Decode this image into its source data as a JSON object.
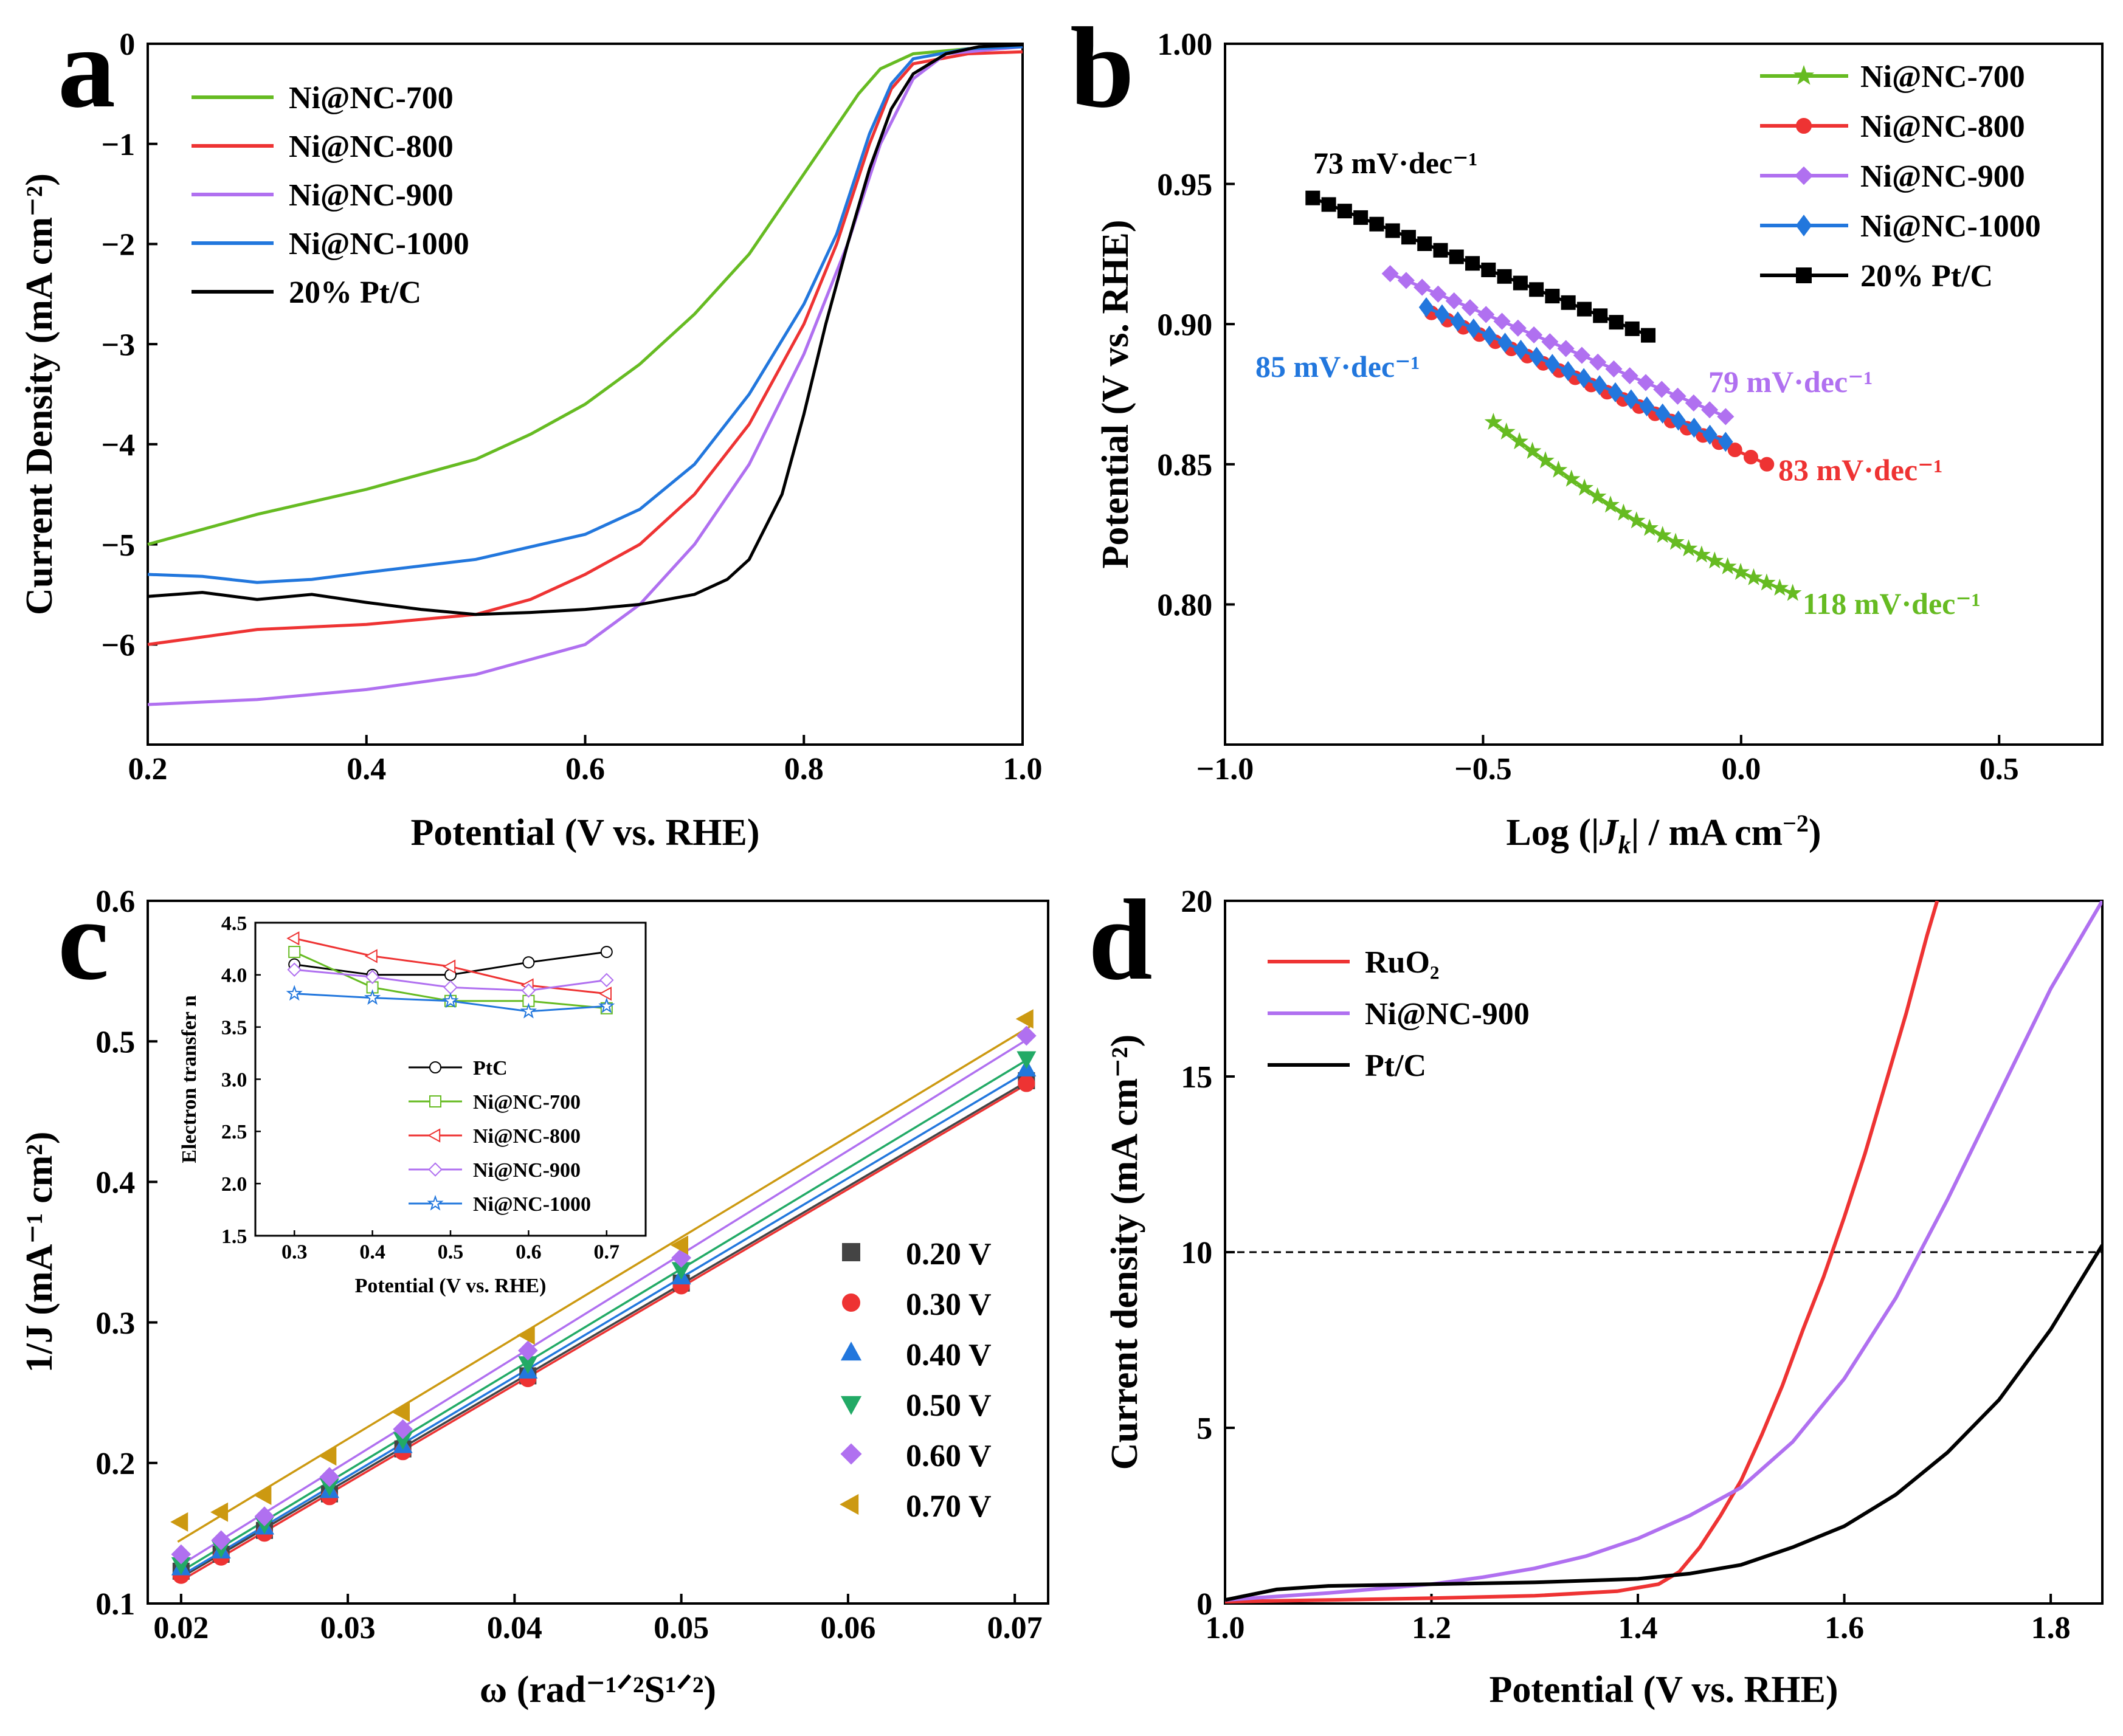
{
  "panels": {
    "a": {
      "label": "a"
    },
    "b": {
      "label": "b"
    },
    "c": {
      "label": "c"
    },
    "d": {
      "label": "d"
    }
  },
  "colors": {
    "green": "#66bb22",
    "red": "#ee3333",
    "purple": "#b070f0",
    "blue": "#2277dd",
    "black": "#000000",
    "gold": "#cc9911"
  },
  "chart_data": [
    {
      "id": "a",
      "type": "line",
      "xlabel": "Potential (V vs. RHE)",
      "ylabel": "Current Density (mA cm⁻²)",
      "xlim": [
        0.2,
        1.0
      ],
      "ylim": [
        -7.0,
        0
      ],
      "xticks": [
        "0.2",
        "0.4",
        "0.6",
        "0.8",
        "1.0"
      ],
      "yticks": [
        "0",
        "−1",
        "−2",
        "−3",
        "−4",
        "−5",
        "−6"
      ],
      "legend": "top-left",
      "series": [
        {
          "name": "Ni@NC-700",
          "color": "green",
          "points": [
            [
              0.2,
              -5.0
            ],
            [
              0.3,
              -4.7
            ],
            [
              0.4,
              -4.45
            ],
            [
              0.5,
              -4.15
            ],
            [
              0.55,
              -3.9
            ],
            [
              0.6,
              -3.6
            ],
            [
              0.65,
              -3.2
            ],
            [
              0.7,
              -2.7
            ],
            [
              0.75,
              -2.1
            ],
            [
              0.8,
              -1.3
            ],
            [
              0.85,
              -0.5
            ],
            [
              0.87,
              -0.25
            ],
            [
              0.9,
              -0.1
            ],
            [
              0.95,
              -0.05
            ],
            [
              1.0,
              -0.03
            ]
          ]
        },
        {
          "name": "Ni@NC-800",
          "color": "red",
          "points": [
            [
              0.2,
              -6.0
            ],
            [
              0.3,
              -5.85
            ],
            [
              0.4,
              -5.8
            ],
            [
              0.5,
              -5.7
            ],
            [
              0.55,
              -5.55
            ],
            [
              0.6,
              -5.3
            ],
            [
              0.65,
              -5.0
            ],
            [
              0.7,
              -4.5
            ],
            [
              0.75,
              -3.8
            ],
            [
              0.8,
              -2.8
            ],
            [
              0.83,
              -2.0
            ],
            [
              0.86,
              -1.0
            ],
            [
              0.88,
              -0.45
            ],
            [
              0.9,
              -0.2
            ],
            [
              0.95,
              -0.1
            ],
            [
              1.0,
              -0.08
            ]
          ]
        },
        {
          "name": "Ni@NC-900",
          "color": "purple",
          "points": [
            [
              0.2,
              -6.6
            ],
            [
              0.3,
              -6.55
            ],
            [
              0.4,
              -6.45
            ],
            [
              0.5,
              -6.3
            ],
            [
              0.6,
              -6.0
            ],
            [
              0.65,
              -5.6
            ],
            [
              0.7,
              -5.0
            ],
            [
              0.75,
              -4.2
            ],
            [
              0.8,
              -3.1
            ],
            [
              0.84,
              -2.0
            ],
            [
              0.87,
              -1.0
            ],
            [
              0.9,
              -0.35
            ],
            [
              0.93,
              -0.1
            ],
            [
              1.0,
              -0.03
            ]
          ]
        },
        {
          "name": "Ni@NC-1000",
          "color": "blue",
          "points": [
            [
              0.2,
              -5.3
            ],
            [
              0.25,
              -5.32
            ],
            [
              0.3,
              -5.38
            ],
            [
              0.35,
              -5.35
            ],
            [
              0.4,
              -5.28
            ],
            [
              0.5,
              -5.15
            ],
            [
              0.6,
              -4.9
            ],
            [
              0.65,
              -4.65
            ],
            [
              0.7,
              -4.2
            ],
            [
              0.75,
              -3.5
            ],
            [
              0.8,
              -2.6
            ],
            [
              0.83,
              -1.9
            ],
            [
              0.86,
              -0.9
            ],
            [
              0.88,
              -0.4
            ],
            [
              0.9,
              -0.15
            ],
            [
              0.95,
              -0.05
            ],
            [
              1.0,
              -0.03
            ]
          ]
        },
        {
          "name": "20% Pt/C",
          "color": "black",
          "points": [
            [
              0.2,
              -5.52
            ],
            [
              0.25,
              -5.48
            ],
            [
              0.3,
              -5.55
            ],
            [
              0.35,
              -5.5
            ],
            [
              0.4,
              -5.58
            ],
            [
              0.45,
              -5.65
            ],
            [
              0.5,
              -5.7
            ],
            [
              0.55,
              -5.68
            ],
            [
              0.6,
              -5.65
            ],
            [
              0.65,
              -5.6
            ],
            [
              0.7,
              -5.5
            ],
            [
              0.73,
              -5.35
            ],
            [
              0.75,
              -5.15
            ],
            [
              0.78,
              -4.5
            ],
            [
              0.8,
              -3.7
            ],
            [
              0.82,
              -2.8
            ],
            [
              0.84,
              -2.0
            ],
            [
              0.86,
              -1.25
            ],
            [
              0.88,
              -0.65
            ],
            [
              0.9,
              -0.3
            ],
            [
              0.93,
              -0.1
            ],
            [
              0.96,
              -0.03
            ],
            [
              1.0,
              -0.01
            ]
          ]
        }
      ]
    },
    {
      "id": "b",
      "type": "line",
      "xlabel_parts": [
        "Log (|",
        "J",
        "k",
        "| / mA cm",
        "−2",
        ")"
      ],
      "ylabel": "Potential (V vs. RHE)",
      "xlim": [
        -1.0,
        0.7
      ],
      "ylim": [
        0.75,
        1.0
      ],
      "xticks": [
        "−1.0",
        "−0.5",
        "0.0",
        "0.5"
      ],
      "yticks": [
        "0.80",
        "0.85",
        "0.90",
        "0.95",
        "1.00"
      ],
      "legend": "top-right",
      "series": [
        {
          "name": "Ni@NC-700",
          "color": "green",
          "marker": "star",
          "slope": "118 mV·dec⁻¹",
          "start": [
            -0.48,
            0.865
          ],
          "end": [
            0.1,
            0.804
          ],
          "n": 24
        },
        {
          "name": "Ni@NC-800",
          "color": "red",
          "marker": "circle",
          "slope": "83 mV·dec⁻¹",
          "start": [
            -0.6,
            0.904
          ],
          "end": [
            0.05,
            0.85
          ],
          "n": 22
        },
        {
          "name": "Ni@NC-900",
          "color": "purple",
          "marker": "diamond",
          "slope": "79 mV·dec⁻¹",
          "start": [
            -0.68,
            0.918
          ],
          "end": [
            -0.03,
            0.867
          ],
          "n": 22
        },
        {
          "name": "Ni@NC-1000",
          "color": "blue",
          "marker": "diamondbig",
          "slope": "85 mV·dec⁻¹",
          "start": [
            -0.61,
            0.906
          ],
          "end": [
            -0.03,
            0.858
          ],
          "n": 20
        },
        {
          "name": "20% Pt/C",
          "color": "black",
          "marker": "square",
          "slope": "73 mV·dec⁻¹",
          "start": [
            -0.83,
            0.945
          ],
          "end": [
            -0.18,
            0.896
          ],
          "n": 22
        }
      ]
    },
    {
      "id": "c",
      "type": "scatter",
      "xlabel": "ω (rad⁻¹ᐟ²S¹ᐟ²)",
      "ylabel": "1/J (mA⁻¹ cm²)",
      "xlim": [
        0.018,
        0.072
      ],
      "ylim": [
        0.1,
        0.6
      ],
      "xticks": [
        "0.02",
        "0.03",
        "0.04",
        "0.05",
        "0.06",
        "0.07"
      ],
      "yticks": [
        "0.1",
        "0.2",
        "0.3",
        "0.4",
        "0.5",
        "0.6"
      ],
      "x": [
        0.02,
        0.0224,
        0.025,
        0.0289,
        0.0333,
        0.0408,
        0.05,
        0.0707
      ],
      "legend": "bottom-right",
      "series": [
        {
          "name": "0.20 V",
          "color": "#444444",
          "marker": "square",
          "values": [
            0.123,
            0.135,
            0.152,
            0.178,
            0.21,
            0.262,
            0.328,
            0.472
          ]
        },
        {
          "name": "0.30 V",
          "color": "#ee3333",
          "marker": "circle",
          "values": [
            0.12,
            0.133,
            0.15,
            0.176,
            0.208,
            0.26,
            0.326,
            0.47
          ]
        },
        {
          "name": "0.40 V",
          "color": "#2277dd",
          "marker": "triangle-up",
          "values": [
            0.125,
            0.137,
            0.154,
            0.18,
            0.212,
            0.265,
            0.332,
            0.48
          ]
        },
        {
          "name": "0.50 V",
          "color": "#22aa66",
          "marker": "triangle-down",
          "values": [
            0.128,
            0.14,
            0.157,
            0.184,
            0.217,
            0.271,
            0.338,
            0.488
          ]
        },
        {
          "name": "0.60 V",
          "color": "#b070f0",
          "marker": "diamond",
          "values": [
            0.135,
            0.145,
            0.162,
            0.19,
            0.224,
            0.28,
            0.346,
            0.504
          ]
        },
        {
          "name": "0.70 V",
          "color": "#cc9911",
          "marker": "triangle-left",
          "values": [
            0.158,
            0.165,
            0.177,
            0.205,
            0.236,
            0.291,
            0.355,
            0.516
          ]
        }
      ],
      "inset": {
        "xlabel": "Potential (V vs. RHE)",
        "ylabel": "Electron transfer n",
        "xlim": [
          0.25,
          0.75
        ],
        "ylim": [
          1.5,
          4.5
        ],
        "xticks": [
          "0.3",
          "0.4",
          "0.5",
          "0.6",
          "0.7"
        ],
        "yticks": [
          "1.5",
          "2.0",
          "2.5",
          "3.0",
          "3.5",
          "4.0",
          "4.5"
        ],
        "x": [
          0.3,
          0.4,
          0.5,
          0.6,
          0.7
        ],
        "series": [
          {
            "name": "PtC",
            "color": "#000000",
            "marker": "circle",
            "values": [
              4.1,
              4.0,
              4.0,
              4.12,
              4.22
            ]
          },
          {
            "name": "Ni@NC-700",
            "color": "#66bb22",
            "marker": "square",
            "values": [
              4.22,
              3.88,
              3.75,
              3.75,
              3.68
            ]
          },
          {
            "name": "Ni@NC-800",
            "color": "#ee3333",
            "marker": "triangle-left",
            "values": [
              4.35,
              4.18,
              4.08,
              3.9,
              3.82
            ]
          },
          {
            "name": "Ni@NC-900",
            "color": "#b070f0",
            "marker": "diamond",
            "values": [
              4.05,
              3.98,
              3.88,
              3.85,
              3.95
            ]
          },
          {
            "name": "Ni@NC-1000",
            "color": "#2277dd",
            "marker": "star",
            "values": [
              3.82,
              3.78,
              3.75,
              3.65,
              3.7
            ]
          }
        ]
      }
    },
    {
      "id": "d",
      "type": "line",
      "xlabel": "Potential (V vs. RHE)",
      "ylabel": "Current density (mA cm⁻²)",
      "xlim": [
        1.0,
        1.85
      ],
      "ylim": [
        0,
        20
      ],
      "xticks": [
        "1.0",
        "1.2",
        "1.4",
        "1.6",
        "1.8"
      ],
      "yticks": [
        "0",
        "5",
        "10",
        "15",
        "20"
      ],
      "reference_line": 10,
      "legend": "top-left",
      "series": [
        {
          "name": "RuO₂",
          "color": "red",
          "points": [
            [
              1.0,
              0.05
            ],
            [
              1.1,
              0.1
            ],
            [
              1.2,
              0.15
            ],
            [
              1.3,
              0.22
            ],
            [
              1.38,
              0.35
            ],
            [
              1.42,
              0.55
            ],
            [
              1.44,
              0.9
            ],
            [
              1.46,
              1.6
            ],
            [
              1.48,
              2.5
            ],
            [
              1.5,
              3.5
            ],
            [
              1.52,
              4.8
            ],
            [
              1.54,
              6.2
            ],
            [
              1.56,
              7.8
            ],
            [
              1.58,
              9.3
            ],
            [
              1.6,
              11.0
            ],
            [
              1.62,
              12.8
            ],
            [
              1.64,
              14.8
            ],
            [
              1.66,
              16.8
            ],
            [
              1.68,
              19.0
            ],
            [
              1.69,
              20.0
            ]
          ]
        },
        {
          "name": "Ni@NC-900",
          "color": "purple",
          "points": [
            [
              1.0,
              0.1
            ],
            [
              1.1,
              0.3
            ],
            [
              1.2,
              0.55
            ],
            [
              1.25,
              0.75
            ],
            [
              1.3,
              1.0
            ],
            [
              1.35,
              1.35
            ],
            [
              1.4,
              1.85
            ],
            [
              1.45,
              2.5
            ],
            [
              1.5,
              3.3
            ],
            [
              1.55,
              4.6
            ],
            [
              1.6,
              6.4
            ],
            [
              1.65,
              8.7
            ],
            [
              1.7,
              11.5
            ],
            [
              1.75,
              14.5
            ],
            [
              1.8,
              17.5
            ],
            [
              1.85,
              20.0
            ]
          ]
        },
        {
          "name": "Pt/C",
          "color": "black",
          "points": [
            [
              1.0,
              0.1
            ],
            [
              1.05,
              0.4
            ],
            [
              1.1,
              0.5
            ],
            [
              1.2,
              0.55
            ],
            [
              1.3,
              0.6
            ],
            [
              1.4,
              0.7
            ],
            [
              1.45,
              0.85
            ],
            [
              1.5,
              1.1
            ],
            [
              1.55,
              1.6
            ],
            [
              1.6,
              2.2
            ],
            [
              1.65,
              3.1
            ],
            [
              1.7,
              4.3
            ],
            [
              1.75,
              5.8
            ],
            [
              1.8,
              7.8
            ],
            [
              1.85,
              10.2
            ]
          ]
        }
      ]
    }
  ]
}
